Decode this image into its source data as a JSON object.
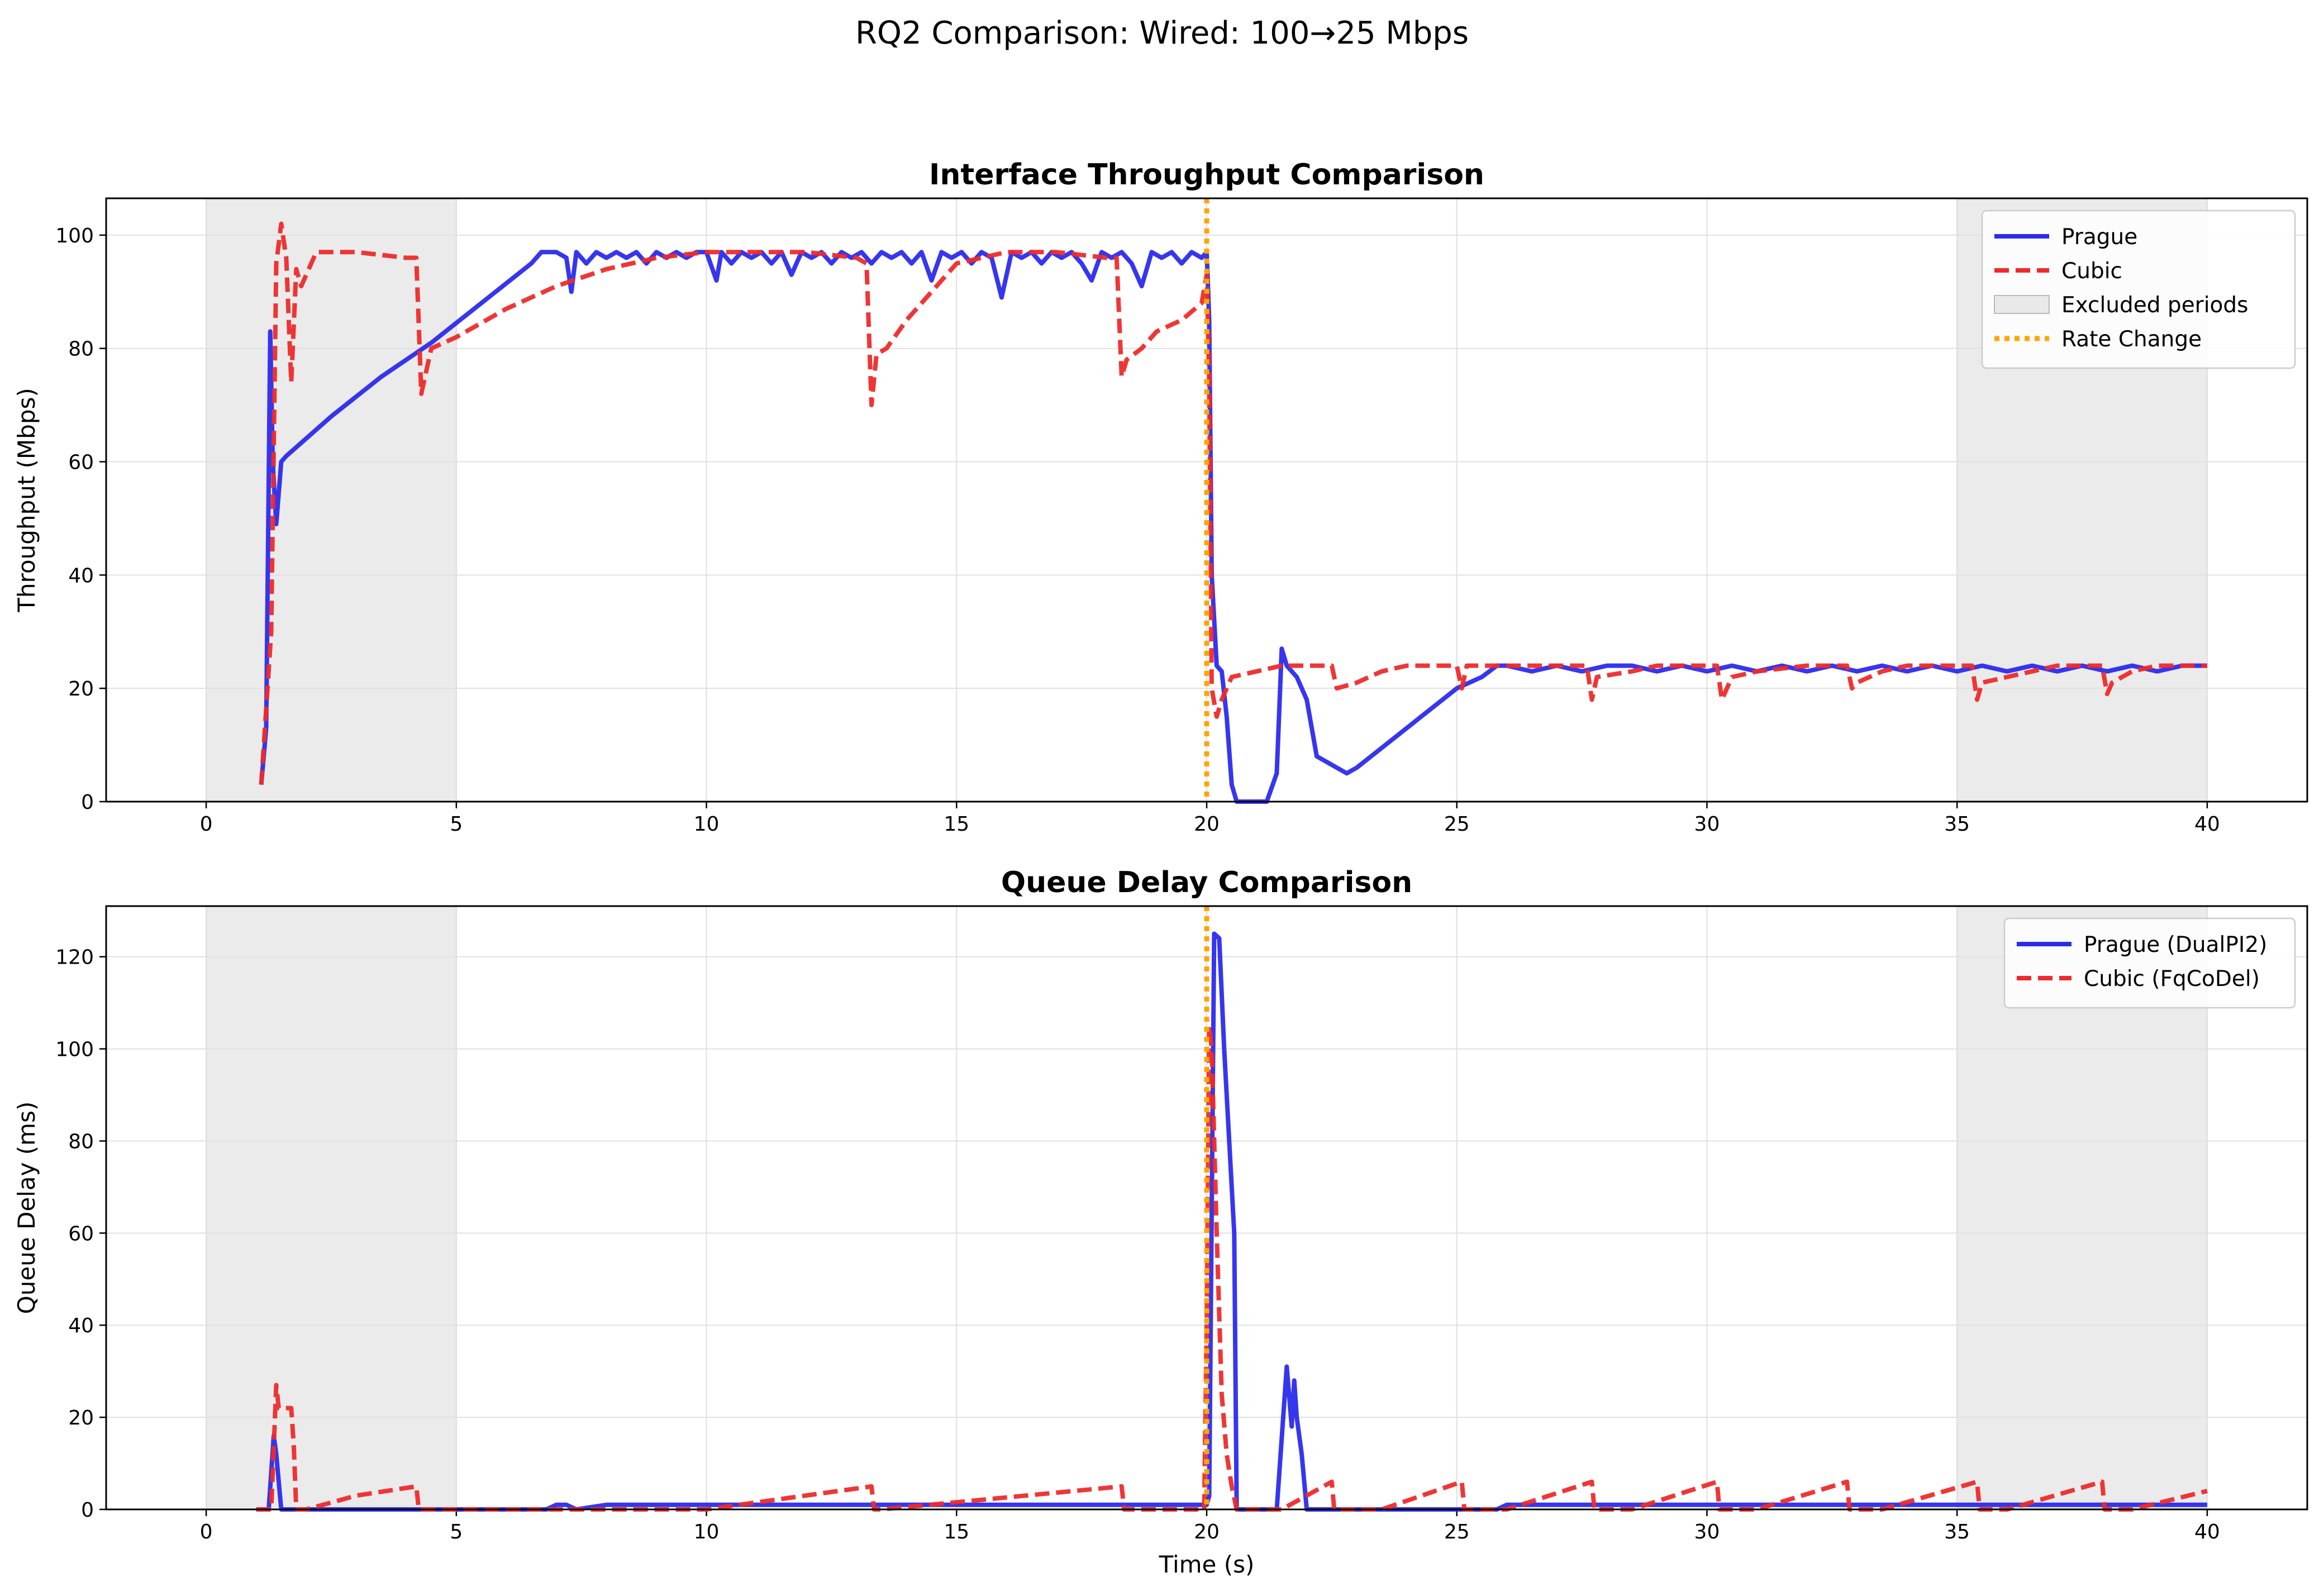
{
  "figure": {
    "suptitle": "RQ2 Comparison: Wired: 100→25 Mbps"
  },
  "colors": {
    "prague": "#2b2bee",
    "cubic": "#ee2b2b",
    "excluded": "#d3d3d3",
    "rate_change": "#ffa500",
    "grid": "#e0e0e0"
  },
  "chart_data": [
    {
      "type": "line",
      "title": "Interface Throughput Comparison",
      "xlabel": "",
      "ylabel": "Throughput (Mbps)",
      "xlim": [
        -2,
        42
      ],
      "ylim": [
        0,
        106.5
      ],
      "xticks": [
        0,
        5,
        10,
        15,
        20,
        25,
        30,
        35,
        40
      ],
      "yticks": [
        0,
        20,
        40,
        60,
        80,
        100
      ],
      "grid": true,
      "legend_position": "upper right",
      "legend": [
        "Prague",
        "Cubic",
        "Excluded periods",
        "Rate Change"
      ],
      "excluded_periods": [
        [
          0,
          5
        ],
        [
          35,
          40
        ]
      ],
      "rate_change_x": 20,
      "series": [
        {
          "name": "Prague",
          "style": "solid",
          "x": [
            1.1,
            1.2,
            1.28,
            1.33,
            1.4,
            1.5,
            1.6,
            2.5,
            3.5,
            4.5,
            5.5,
            6.5,
            6.7,
            7.0,
            7.2,
            7.3,
            7.4,
            7.6,
            7.8,
            8.0,
            8.2,
            8.4,
            8.6,
            8.8,
            9.0,
            9.2,
            9.4,
            9.6,
            9.8,
            10.0,
            10.2,
            10.3,
            10.5,
            10.7,
            10.9,
            11.1,
            11.3,
            11.5,
            11.7,
            11.9,
            12.1,
            12.3,
            12.5,
            12.7,
            12.9,
            13.1,
            13.3,
            13.5,
            13.7,
            13.9,
            14.1,
            14.3,
            14.5,
            14.7,
            14.9,
            15.1,
            15.3,
            15.5,
            15.7,
            15.9,
            16.1,
            16.3,
            16.5,
            16.7,
            16.9,
            17.1,
            17.3,
            17.5,
            17.7,
            17.9,
            18.1,
            18.3,
            18.5,
            18.7,
            18.9,
            19.1,
            19.3,
            19.5,
            19.7,
            19.9,
            20.0,
            20.05,
            20.1,
            20.2,
            20.3,
            20.4,
            20.5,
            20.6,
            20.8,
            21.0,
            21.2,
            21.4,
            21.5,
            21.6,
            21.8,
            22.0,
            22.2,
            22.4,
            22.6,
            22.8,
            23.0,
            24.0,
            25.0,
            25.5,
            25.8,
            26.0,
            26.5,
            27.0,
            27.5,
            28.0,
            28.5,
            29.0,
            29.5,
            30.0,
            30.5,
            31.0,
            31.5,
            32.0,
            32.5,
            33.0,
            33.5,
            34.0,
            34.5,
            35.0,
            35.5,
            36.0,
            36.5,
            37.0,
            37.5,
            38.0,
            38.5,
            39.0,
            39.5,
            40.0
          ],
          "y": [
            3,
            13,
            83,
            60,
            49,
            60,
            61,
            68,
            75,
            81,
            88,
            95,
            97,
            97,
            96,
            90,
            97,
            95,
            97,
            96,
            97,
            96,
            97,
            95,
            97,
            96,
            97,
            96,
            97,
            97,
            92,
            97,
            95,
            97,
            96,
            97,
            95,
            97,
            93,
            97,
            96,
            97,
            95,
            97,
            96,
            97,
            95,
            97,
            96,
            97,
            95,
            97,
            92,
            97,
            96,
            97,
            95,
            97,
            96,
            89,
            97,
            96,
            97,
            95,
            97,
            96,
            97,
            95,
            92,
            97,
            96,
            97,
            95,
            91,
            97,
            96,
            97,
            95,
            97,
            96,
            97,
            85,
            40,
            24,
            23,
            15,
            3,
            0,
            0,
            0,
            0,
            5,
            27,
            24,
            22,
            18,
            8,
            7,
            6,
            5,
            6,
            13,
            20,
            22,
            24,
            24,
            23,
            24,
            23,
            24,
            24,
            23,
            24,
            23,
            24,
            23,
            24,
            23,
            24,
            23,
            24,
            23,
            24,
            23,
            24,
            23,
            24,
            23,
            24,
            23,
            24,
            23,
            24,
            24
          ]
        },
        {
          "name": "Cubic",
          "style": "dashed",
          "x": [
            1.1,
            1.3,
            1.4,
            1.5,
            1.6,
            1.7,
            1.8,
            1.9,
            2.2,
            3.0,
            4.0,
            4.2,
            4.3,
            4.5,
            5.0,
            6.0,
            7.0,
            8.0,
            9.0,
            10.0,
            11.0,
            12.0,
            13.0,
            13.2,
            13.3,
            13.4,
            13.6,
            14.0,
            14.5,
            15.0,
            16.0,
            17.0,
            18.0,
            18.2,
            18.3,
            18.4,
            18.7,
            19.0,
            19.5,
            19.9,
            20.0,
            20.05,
            20.1,
            20.2,
            20.3,
            20.5,
            21.0,
            21.5,
            22.0,
            22.5,
            22.6,
            23.0,
            23.5,
            24.0,
            25.0,
            25.1,
            25.2,
            26.0,
            27.0,
            27.6,
            27.7,
            27.8,
            28.5,
            29.0,
            30.0,
            30.2,
            30.3,
            30.5,
            31.0,
            32.0,
            32.8,
            32.9,
            33.0,
            33.5,
            34.0,
            35.0,
            35.3,
            35.4,
            35.5,
            36.0,
            36.5,
            37.0,
            37.9,
            38.0,
            38.1,
            38.5,
            39.0,
            40.0
          ],
          "y": [
            3,
            30,
            95,
            102,
            96,
            74,
            94,
            91,
            97,
            97,
            96,
            96,
            72,
            80,
            82,
            87,
            91,
            94,
            96,
            97,
            97,
            97,
            96,
            95,
            70,
            79,
            80,
            85,
            90,
            95,
            97,
            97,
            96,
            96,
            75,
            78,
            80,
            83,
            85,
            88,
            93,
            75,
            20,
            15,
            18,
            22,
            23,
            24,
            24,
            24,
            20,
            21,
            23,
            24,
            24,
            20,
            24,
            24,
            24,
            24,
            18,
            22,
            23,
            24,
            24,
            24,
            18,
            22,
            23,
            24,
            24,
            20,
            21,
            23,
            24,
            24,
            24,
            18,
            21,
            22,
            23,
            24,
            24,
            19,
            21,
            23,
            24,
            24
          ]
        }
      ]
    },
    {
      "type": "line",
      "title": "Queue Delay Comparison",
      "xlabel": "Time (s)",
      "ylabel": "Queue Delay (ms)",
      "xlim": [
        -2,
        42
      ],
      "ylim": [
        0,
        131
      ],
      "xticks": [
        0,
        5,
        10,
        15,
        20,
        25,
        30,
        35,
        40
      ],
      "yticks": [
        0,
        20,
        40,
        60,
        80,
        100,
        120
      ],
      "grid": true,
      "legend_position": "upper right",
      "legend": [
        "Prague (DualPI2)",
        "Cubic (FqCoDel)"
      ],
      "excluded_periods": [
        [
          0,
          5
        ],
        [
          35,
          40
        ]
      ],
      "rate_change_x": 20,
      "series": [
        {
          "name": "Prague (DualPI2)",
          "style": "solid",
          "x": [
            1.0,
            1.25,
            1.3,
            1.35,
            1.4,
            1.5,
            1.6,
            6.8,
            7.0,
            7.2,
            7.4,
            8.0,
            20.0,
            20.05,
            20.15,
            20.25,
            20.35,
            20.45,
            20.5,
            20.55,
            20.6,
            21.4,
            21.6,
            21.7,
            21.75,
            21.8,
            21.9,
            22.0,
            22.1,
            25.8,
            26.0,
            40.0
          ],
          "y": [
            0,
            0,
            8,
            16,
            12,
            0,
            0,
            0,
            1,
            1,
            0,
            1,
            1,
            3,
            125,
            124,
            100,
            80,
            70,
            60,
            0,
            0,
            31,
            18,
            28,
            20,
            12,
            0,
            0,
            0,
            1,
            1
          ]
        },
        {
          "name": "Cubic (FqCoDel)",
          "style": "dashed",
          "x": [
            1.0,
            1.3,
            1.4,
            1.45,
            1.5,
            1.7,
            1.75,
            1.8,
            1.85,
            2.0,
            3.0,
            4.2,
            4.25,
            4.4,
            10.0,
            13.3,
            13.35,
            13.5,
            18.3,
            18.35,
            18.5,
            19.95,
            20.0,
            20.05,
            20.1,
            20.2,
            20.3,
            20.4,
            20.5,
            20.6,
            20.7,
            21.0,
            21.5,
            22.5,
            22.55,
            23.5,
            25.1,
            25.15,
            26.0,
            27.7,
            27.75,
            28.5,
            30.2,
            30.25,
            31.0,
            32.8,
            32.85,
            33.5,
            35.4,
            35.45,
            36.0,
            37.9,
            37.95,
            38.5,
            40.0
          ],
          "y": [
            0,
            0,
            27,
            22,
            22,
            22,
            14,
            0,
            0,
            0,
            3,
            5,
            0,
            0,
            0,
            5,
            0,
            0,
            5,
            0,
            0,
            0,
            40,
            105,
            100,
            60,
            25,
            12,
            5,
            0,
            0,
            0,
            0,
            6,
            0,
            0,
            6,
            0,
            0,
            6,
            0,
            0,
            6,
            0,
            0,
            6,
            0,
            0,
            6,
            0,
            0,
            6,
            0,
            0,
            4
          ]
        }
      ]
    }
  ]
}
